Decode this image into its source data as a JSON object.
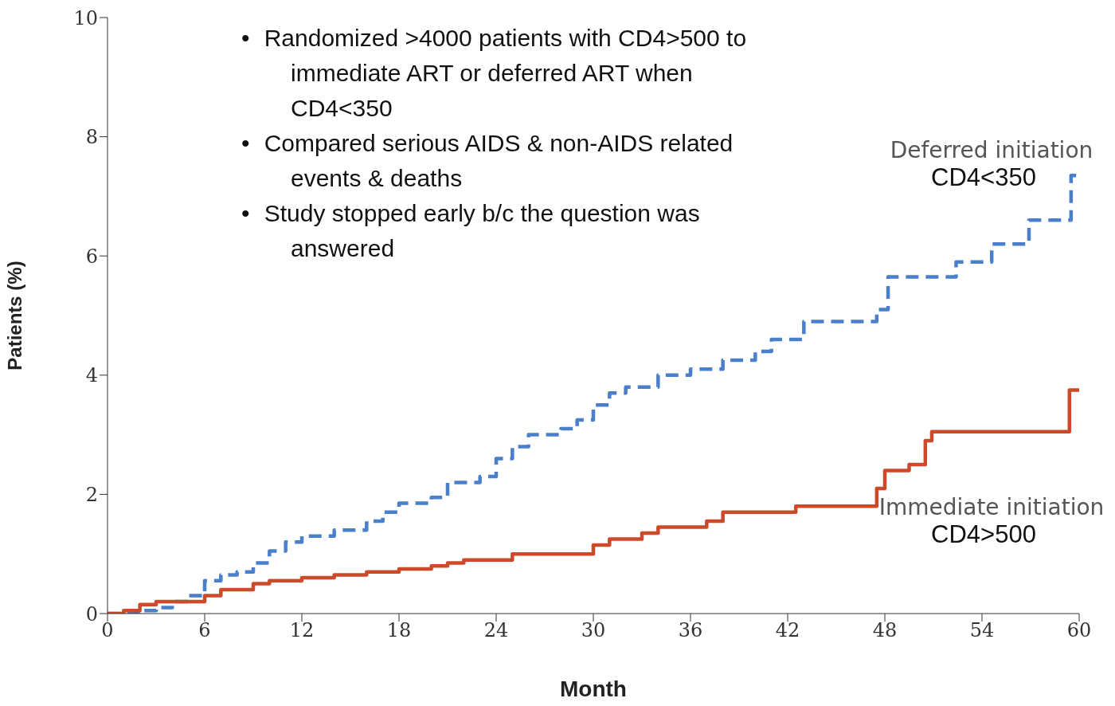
{
  "chart_data": {
    "type": "step",
    "xlabel": "Month",
    "ylabel": "Patients (%)",
    "xlim": [
      0,
      60
    ],
    "xticks": [
      0,
      6,
      12,
      18,
      24,
      30,
      36,
      42,
      48,
      54,
      60
    ],
    "ylim": [
      0,
      10
    ],
    "yticks": [
      0,
      2,
      4,
      6,
      8,
      10
    ],
    "legend": false,
    "annotations": [
      "•\tRandomized >4000 patients with CD4>500 to immediate ART or deferred ART when CD4<350",
      "•\tCompared serious AIDS & non-AIDS related events & deaths",
      "•\tStudy stopped early b/c the question was answered",
      "CD4<350",
      "CD4>500"
    ],
    "series": [
      {
        "name": "Deferred initiation",
        "color": "#4a7fcc",
        "line_style": "dashed",
        "x": [
          0,
          2,
          3,
          4,
          5,
          6,
          7,
          8,
          9,
          10,
          11,
          12,
          14,
          16,
          17,
          18,
          20,
          21,
          23,
          24,
          25,
          26,
          28,
          29,
          30,
          31,
          32,
          34,
          36,
          38,
          40,
          41,
          43,
          47.5,
          48.2,
          52.4,
          54.6,
          56.9,
          59.5,
          60
        ],
        "values": [
          0,
          0.05,
          0.1,
          0.2,
          0.3,
          0.55,
          0.65,
          0.7,
          0.85,
          1.05,
          1.2,
          1.3,
          1.4,
          1.55,
          1.7,
          1.85,
          1.95,
          2.2,
          2.3,
          2.6,
          2.8,
          3.0,
          3.1,
          3.25,
          3.5,
          3.7,
          3.8,
          4.0,
          4.1,
          4.25,
          4.4,
          4.6,
          4.9,
          5.1,
          5.65,
          5.9,
          6.2,
          6.6,
          7.35,
          7.35
        ]
      },
      {
        "name": "Immediate initiation",
        "color": "#cc4a2a",
        "line_style": "solid",
        "x": [
          0,
          1,
          2,
          3,
          6,
          7,
          9,
          10,
          12,
          14,
          16,
          18,
          20,
          21,
          22,
          25,
          30,
          31,
          33,
          34,
          37,
          38,
          42.5,
          47.5,
          48,
          49.5,
          50.5,
          50.9,
          59.4,
          60
        ],
        "values": [
          0,
          0.05,
          0.15,
          0.2,
          0.3,
          0.4,
          0.5,
          0.55,
          0.6,
          0.65,
          0.7,
          0.75,
          0.8,
          0.85,
          0.9,
          1.0,
          1.15,
          1.25,
          1.35,
          1.45,
          1.55,
          1.7,
          1.8,
          2.1,
          2.4,
          2.5,
          2.9,
          3.05,
          3.75,
          3.75
        ]
      }
    ]
  }
}
